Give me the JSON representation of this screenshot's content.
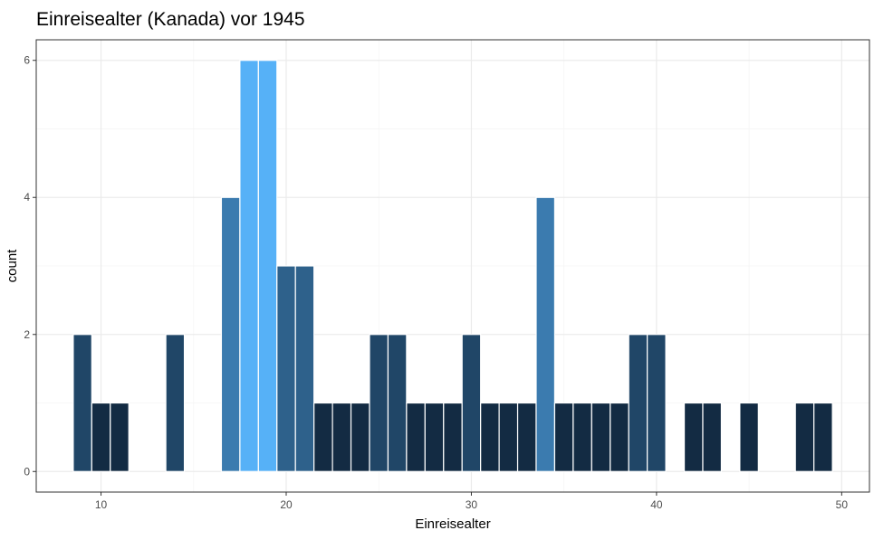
{
  "chart_data": {
    "type": "bar",
    "title": "Einreisealter (Kanada) vor 1945",
    "xlabel": "Einreisealter",
    "ylabel": "count",
    "xlim": [
      6.5,
      51.5
    ],
    "ylim": [
      -0.3,
      6.3
    ],
    "xticks": [
      10,
      20,
      30,
      40,
      50
    ],
    "yticks": [
      0,
      2,
      4,
      6
    ],
    "grid": true,
    "bin_width": 1,
    "bars": [
      {
        "x": 9,
        "count": 2
      },
      {
        "x": 10,
        "count": 1
      },
      {
        "x": 11,
        "count": 1
      },
      {
        "x": 14,
        "count": 2
      },
      {
        "x": 17,
        "count": 4
      },
      {
        "x": 18,
        "count": 6
      },
      {
        "x": 19,
        "count": 6
      },
      {
        "x": 20,
        "count": 3
      },
      {
        "x": 21,
        "count": 3
      },
      {
        "x": 22,
        "count": 1
      },
      {
        "x": 23,
        "count": 1
      },
      {
        "x": 24,
        "count": 1
      },
      {
        "x": 25,
        "count": 2
      },
      {
        "x": 26,
        "count": 2
      },
      {
        "x": 27,
        "count": 1
      },
      {
        "x": 28,
        "count": 1
      },
      {
        "x": 29,
        "count": 1
      },
      {
        "x": 30,
        "count": 2
      },
      {
        "x": 31,
        "count": 1
      },
      {
        "x": 32,
        "count": 1
      },
      {
        "x": 33,
        "count": 1
      },
      {
        "x": 34,
        "count": 4
      },
      {
        "x": 35,
        "count": 1
      },
      {
        "x": 36,
        "count": 1
      },
      {
        "x": 37,
        "count": 1
      },
      {
        "x": 38,
        "count": 1
      },
      {
        "x": 39,
        "count": 2
      },
      {
        "x": 40,
        "count": 2
      },
      {
        "x": 42,
        "count": 1
      },
      {
        "x": 43,
        "count": 1
      },
      {
        "x": 45,
        "count": 1
      },
      {
        "x": 48,
        "count": 1
      },
      {
        "x": 49,
        "count": 1
      }
    ],
    "fill_scale": {
      "low_color": "#132B43",
      "high_color": "#56B1F7",
      "low_value": 1,
      "high_value": 6
    },
    "colors": {
      "panel_border": "#333333",
      "grid_major": "#ebebeb",
      "grid_minor": "#f5f5f5",
      "bar_outline": "#ffffff"
    }
  }
}
